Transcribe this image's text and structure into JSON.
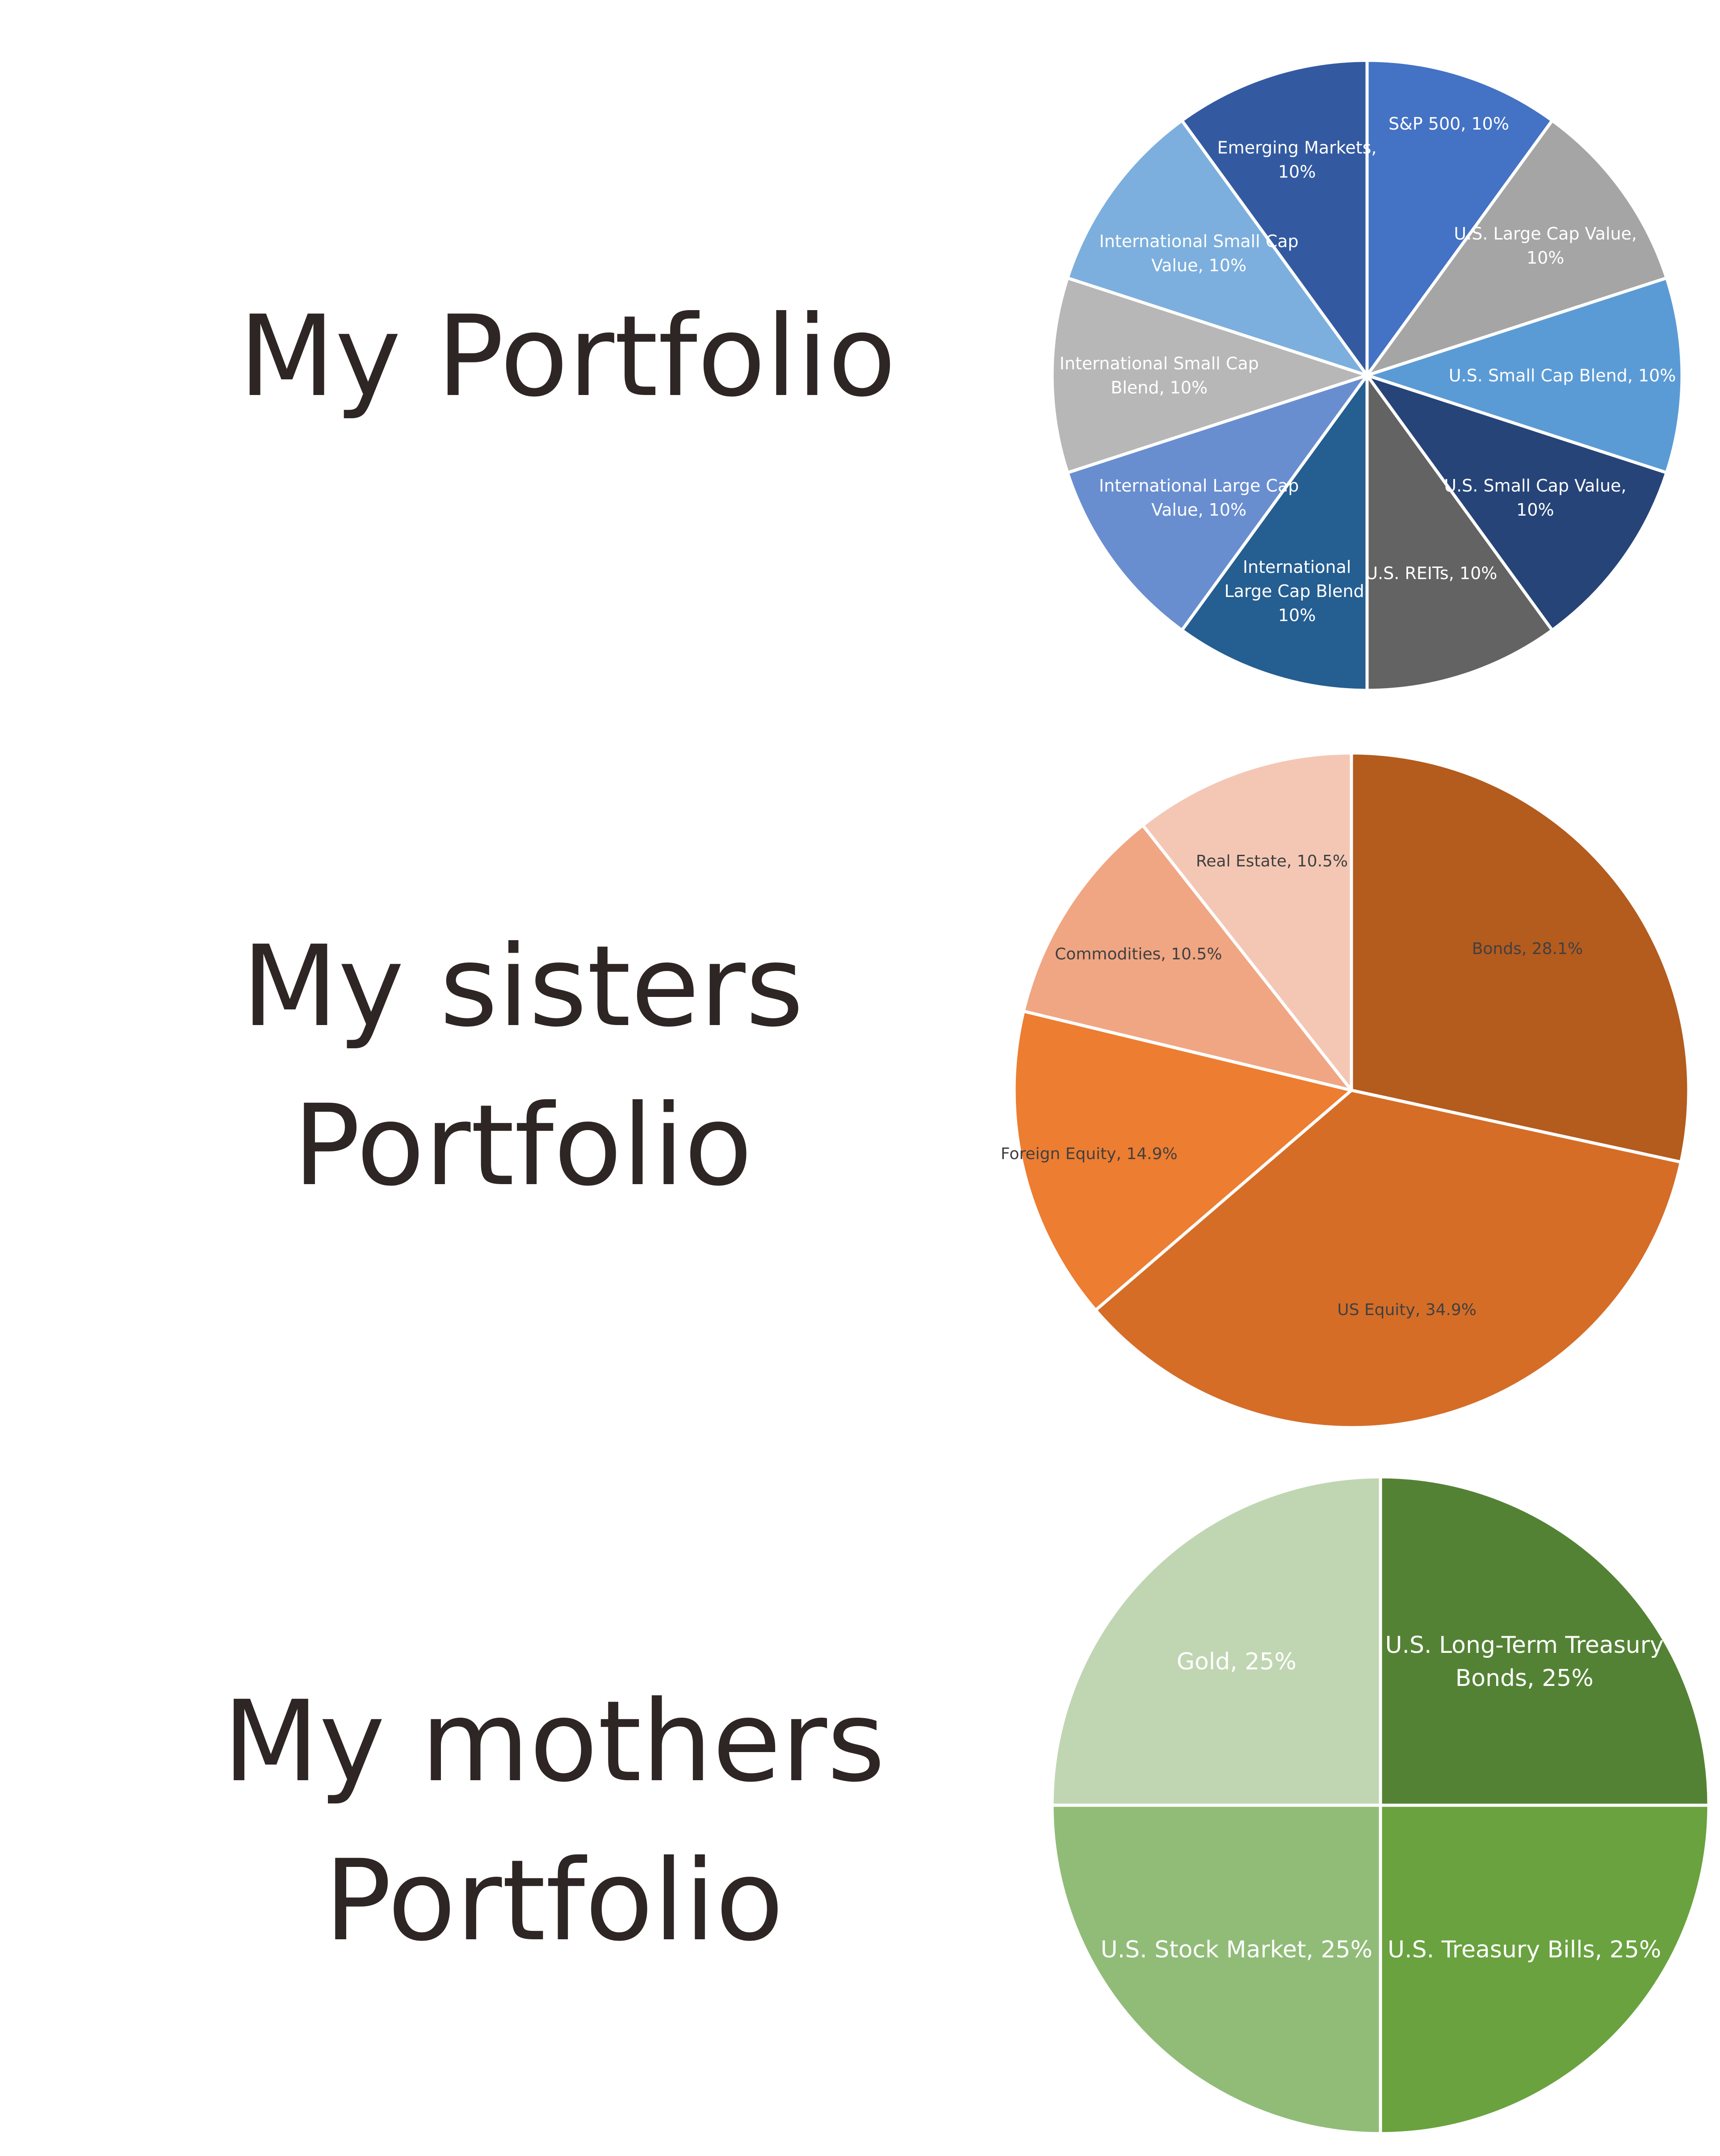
{
  "titles": [
    {
      "lines": [
        "My Portfolio"
      ]
    },
    {
      "lines": [
        "My sisters",
        "Portfolio"
      ]
    },
    {
      "lines": [
        "My mothers",
        "Portfolio"
      ]
    }
  ],
  "chart_data": [
    {
      "type": "pie",
      "label_color": "#ffffff",
      "slices": [
        {
          "lines": [
            "S&P 500, 10%"
          ],
          "value": 10,
          "color": "#4472c4"
        },
        {
          "lines": [
            "U.S. Large Cap Value,",
            "10%"
          ],
          "value": 10,
          "color": "#a5a5a5"
        },
        {
          "lines": [
            "U.S. Small Cap Blend, 10%"
          ],
          "value": 10,
          "color": "#5b9bd5"
        },
        {
          "lines": [
            "U.S. Small Cap Value,",
            "10%"
          ],
          "value": 10,
          "color": "#264478"
        },
        {
          "lines": [
            "U.S. REITs, 10%"
          ],
          "value": 10,
          "color": "#636363"
        },
        {
          "lines": [
            "International",
            "Large Cap Blend,",
            "10%"
          ],
          "value": 10,
          "color": "#255e91"
        },
        {
          "lines": [
            "International Large Cap",
            "Value, 10%"
          ],
          "value": 10,
          "color": "#698ed0"
        },
        {
          "lines": [
            "International Small Cap",
            "Blend, 10%"
          ],
          "value": 10,
          "color": "#b7b7b7"
        },
        {
          "lines": [
            "International Small Cap",
            "Value, 10%"
          ],
          "value": 10,
          "color": "#7cafdd"
        },
        {
          "lines": [
            "Emerging Markets,",
            "10%"
          ],
          "value": 10,
          "color": "#335aa1"
        }
      ]
    },
    {
      "type": "pie",
      "label_color": "#404040",
      "slices": [
        {
          "lines": [
            "Bonds, 28.1%"
          ],
          "value": 28.1,
          "color": "#b45b1e"
        },
        {
          "lines": [
            "US Equity, 34.9%"
          ],
          "value": 34.9,
          "color": "#d56d27"
        },
        {
          "lines": [
            "Foreign Equity, 14.9%"
          ],
          "value": 14.9,
          "color": "#ed7d31"
        },
        {
          "lines": [
            "Commodities, 10.5%"
          ],
          "value": 10.5,
          "color": "#f0a683"
        },
        {
          "lines": [
            "Real Estate, 10.5%"
          ],
          "value": 10.5,
          "color": "#f4c7b5"
        }
      ]
    },
    {
      "type": "pie",
      "label_color": "#ffffff",
      "slices": [
        {
          "lines": [
            "U.S. Long-Term Treasury",
            "Bonds, 25%"
          ],
          "value": 25,
          "color": "#548235"
        },
        {
          "lines": [
            "U.S. Treasury Bills, 25%"
          ],
          "value": 25,
          "color": "#6aa23f"
        },
        {
          "lines": [
            "U.S. Stock Market, 25%"
          ],
          "value": 25,
          "color": "#90bc78"
        },
        {
          "lines": [
            "Gold, 25%"
          ],
          "value": 25,
          "color": "#c0d6b2"
        }
      ]
    }
  ]
}
